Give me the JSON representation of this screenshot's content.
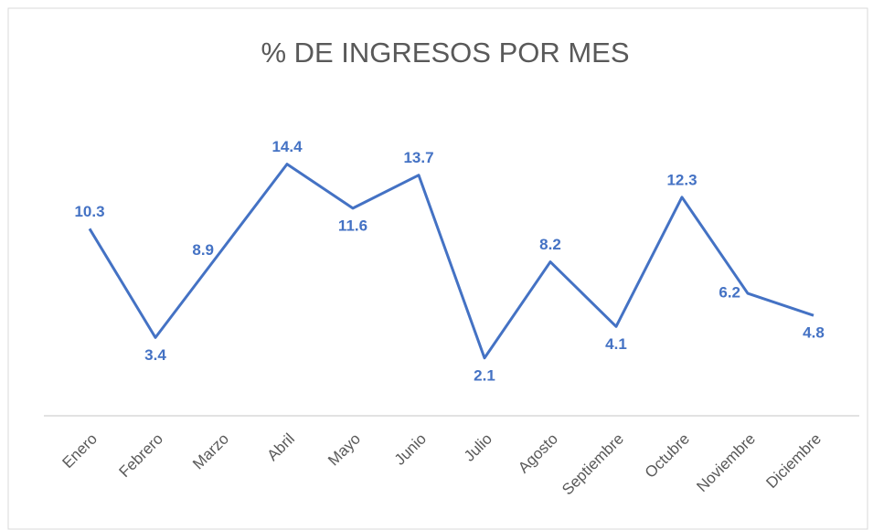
{
  "chart_data": {
    "type": "line",
    "title": "% DE INGRESOS POR MES",
    "categories": [
      "Enero",
      "Febrero",
      "Marzo",
      "Abril",
      "Mayo",
      "Junio",
      "Julio",
      "Agosto",
      "Septiembre",
      "Octubre",
      "Noviembre",
      "Diciembre"
    ],
    "values": [
      10.3,
      3.4,
      8.9,
      14.4,
      11.6,
      13.7,
      2.1,
      8.2,
      4.1,
      12.3,
      6.2,
      4.8
    ],
    "color": "#4472c4",
    "ylim": [
      0,
      16
    ],
    "grid": false
  }
}
